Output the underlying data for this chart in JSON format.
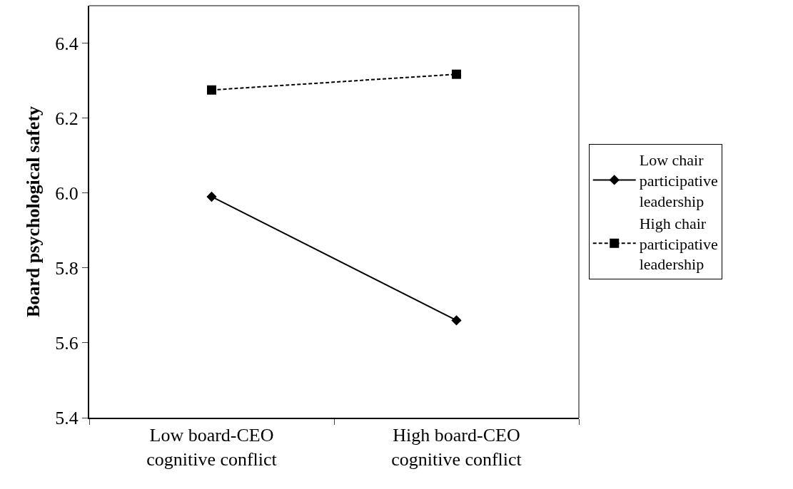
{
  "chart_data": {
    "type": "line",
    "ylabel": "Board psychological safety",
    "categories": [
      "Low board-CEO cognitive conflict",
      "High board-CEO cognitive conflict"
    ],
    "series": [
      {
        "name": "Low chair participative leadership",
        "color": "#000000",
        "values": [
          5.99,
          5.66
        ],
        "marker": "diamond",
        "line_style": "solid"
      },
      {
        "name": "High chair participative leadership",
        "color": "#000000",
        "values": [
          6.275,
          6.317
        ],
        "marker": "square",
        "line_style": "dashed"
      }
    ],
    "ylim": [
      5.4,
      6.5
    ],
    "yticks": [
      {
        "value": 5.4,
        "label": "5.4"
      },
      {
        "value": 5.6,
        "label": "5.6"
      },
      {
        "value": 5.8,
        "label": "5.8"
      },
      {
        "value": 6.0,
        "label": "6.0"
      },
      {
        "value": 6.2,
        "label": "6.2"
      },
      {
        "value": 6.4,
        "label": "6.4"
      }
    ],
    "grid": false,
    "legend": "right"
  }
}
